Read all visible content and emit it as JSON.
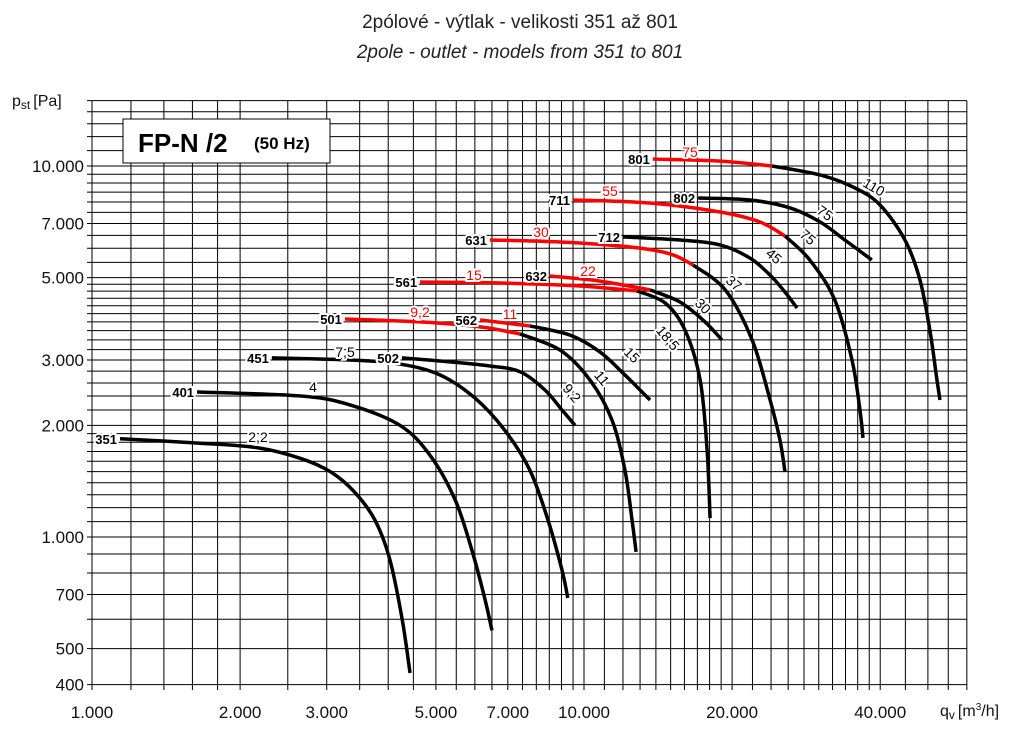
{
  "chart_data": {
    "type": "line",
    "title": "2pólové - výtlak - velikosti 351 až 801",
    "subtitle": "2pole - outlet - models from 351 to 801",
    "badge_main": "FP-N /2",
    "badge_sub": "(50 Hz)",
    "ylabel_main": "p",
    "ylabel_sub": "st",
    "ylabel_unit": "[Pa]",
    "xlabel_main": "q",
    "xlabel_sub": "v",
    "xlabel_unit": "[m",
    "xlabel_sup": "3",
    "xlabel_end": "/h]",
    "xscale": "log",
    "yscale": "log",
    "xlim": [
      1000,
      60000
    ],
    "ylim": [
      400,
      15000
    ],
    "grid": true,
    "x_ticks": [
      {
        "value": 1000,
        "label": "1.000"
      },
      {
        "value": 2000,
        "label": "2.000"
      },
      {
        "value": 3000,
        "label": "3.000"
      },
      {
        "value": 5000,
        "label": "5.000"
      },
      {
        "value": 7000,
        "label": "7.000"
      },
      {
        "value": 10000,
        "label": "10.000"
      },
      {
        "value": 20000,
        "label": "20.000"
      },
      {
        "value": 40000,
        "label": "40.000"
      }
    ],
    "y_ticks": [
      {
        "value": 400,
        "label": "400"
      },
      {
        "value": 500,
        "label": "500"
      },
      {
        "value": 700,
        "label": "700"
      },
      {
        "value": 1000,
        "label": "1.000"
      },
      {
        "value": 2000,
        "label": "2.000"
      },
      {
        "value": 3000,
        "label": "3.000"
      },
      {
        "value": 5000,
        "label": "5.000"
      },
      {
        "value": 7000,
        "label": "7.000"
      },
      {
        "value": 10000,
        "label": "10.000"
      }
    ],
    "colors": {
      "standard": "#000000",
      "highlight": "#ff0000"
    },
    "series": [
      {
        "name": "351",
        "power_black": "2,2",
        "red_until": 0,
        "points": [
          [
            1140,
            1840
          ],
          [
            1660,
            1790
          ],
          [
            2170,
            1740
          ],
          [
            2650,
            1630
          ],
          [
            3050,
            1500
          ],
          [
            3420,
            1320
          ],
          [
            3760,
            1110
          ],
          [
            4030,
            870
          ],
          [
            4270,
            600
          ],
          [
            4430,
            430
          ]
        ]
      },
      {
        "name": "401",
        "power_black": "4",
        "red_until": 0,
        "points": [
          [
            1635,
            2460
          ],
          [
            2650,
            2400
          ],
          [
            3345,
            2270
          ],
          [
            4225,
            2000
          ],
          [
            4865,
            1660
          ],
          [
            5470,
            1260
          ],
          [
            5920,
            920
          ],
          [
            6290,
            680
          ],
          [
            6500,
            560
          ]
        ]
      },
      {
        "name": "451",
        "power_black": "7,5",
        "red_until": 0,
        "points": [
          [
            2320,
            3040
          ],
          [
            3345,
            3000
          ],
          [
            4225,
            2925
          ],
          [
            5095,
            2735
          ],
          [
            6000,
            2370
          ],
          [
            6900,
            1940
          ],
          [
            7760,
            1515
          ],
          [
            8450,
            1110
          ],
          [
            9020,
            815
          ],
          [
            9270,
            685
          ]
        ]
      },
      {
        "name": "502",
        "power_black": "9,2",
        "red_until": 0,
        "points": [
          [
            4266,
            3040
          ],
          [
            5340,
            2965
          ],
          [
            6440,
            2890
          ],
          [
            7410,
            2790
          ],
          [
            8330,
            2490
          ],
          [
            9020,
            2200
          ],
          [
            9590,
            2000
          ]
        ]
      },
      {
        "name": "501",
        "power_red": "9,2",
        "power_black": "11",
        "red_until": 3,
        "points": [
          [
            3266,
            3870
          ],
          [
            4643,
            3800
          ],
          [
            6150,
            3685
          ],
          [
            7410,
            3527
          ],
          [
            8940,
            3190
          ],
          [
            10280,
            2650
          ],
          [
            11400,
            2066
          ],
          [
            12110,
            1516
          ],
          [
            12520,
            1111
          ],
          [
            12760,
            912
          ]
        ]
      },
      {
        "name": "562",
        "power_red": "11",
        "power_black": "15",
        "red_until": 1,
        "points": [
          [
            6150,
            3846
          ],
          [
            7760,
            3706
          ],
          [
            9370,
            3500
          ],
          [
            10780,
            3152
          ],
          [
            12110,
            2734
          ],
          [
            13000,
            2490
          ],
          [
            13620,
            2341
          ]
        ]
      },
      {
        "name": "561",
        "power_red": "15",
        "power_black": "18,5",
        "red_until": 3,
        "points": [
          [
            4643,
            4867
          ],
          [
            6750,
            4838
          ],
          [
            9820,
            4750
          ],
          [
            12820,
            4605
          ],
          [
            14620,
            4272
          ],
          [
            16040,
            3612
          ],
          [
            17220,
            2650
          ],
          [
            17790,
            1716
          ],
          [
            18040,
            1125
          ]
        ]
      },
      {
        "name": "632",
        "power_red": "22",
        "power_black": "30",
        "red_until": 2,
        "points": [
          [
            8530,
            5052
          ],
          [
            10780,
            4895
          ],
          [
            13620,
            4634
          ],
          [
            15670,
            4300
          ],
          [
            17620,
            3800
          ],
          [
            19070,
            3398
          ]
        ]
      },
      {
        "name": "631",
        "power_red": "30",
        "power_black": "37",
        "red_until": 4,
        "points": [
          [
            6440,
            6318
          ],
          [
            8940,
            6240
          ],
          [
            12400,
            6050
          ],
          [
            14960,
            5795
          ],
          [
            16660,
            5410
          ],
          [
            19370,
            4634
          ],
          [
            21960,
            3398
          ],
          [
            23890,
            2341
          ],
          [
            25020,
            1825
          ],
          [
            25620,
            1497
          ]
        ]
      },
      {
        "name": "712",
        "power_black": "45",
        "red_until": 0,
        "points": [
          [
            12000,
            6440
          ],
          [
            15670,
            6318
          ],
          [
            18900,
            6125
          ],
          [
            21730,
            5650
          ],
          [
            23890,
            5080
          ],
          [
            25620,
            4571
          ],
          [
            27100,
            4141
          ]
        ]
      },
      {
        "name": "711",
        "power_red": "55",
        "power_black": "75",
        "red_until": 4,
        "points": [
          [
            9500,
            8100
          ],
          [
            13620,
            7946
          ],
          [
            18900,
            7515
          ],
          [
            22790,
            7064
          ],
          [
            25620,
            6475
          ],
          [
            28760,
            5583
          ],
          [
            32330,
            4357
          ],
          [
            35050,
            3000
          ],
          [
            36380,
            2200
          ],
          [
            36900,
            1850
          ]
        ]
      },
      {
        "name": "802",
        "power_black": "75",
        "red_until": 0,
        "points": [
          [
            17060,
            8200
          ],
          [
            21730,
            8100
          ],
          [
            26230,
            7710
          ],
          [
            30200,
            7064
          ],
          [
            33900,
            6318
          ],
          [
            38460,
            5583
          ]
        ]
      },
      {
        "name": "801",
        "power_red": "75",
        "power_black": "110",
        "red_until": 2,
        "points": [
          [
            13800,
            10440
          ],
          [
            18900,
            10310
          ],
          [
            24110,
            10000
          ],
          [
            30200,
            9457
          ],
          [
            35540,
            8725
          ],
          [
            39970,
            7850
          ],
          [
            44900,
            6318
          ],
          [
            48170,
            4935
          ],
          [
            50460,
            3612
          ],
          [
            52170,
            2650
          ],
          [
            52910,
            2341
          ]
        ]
      }
    ]
  }
}
